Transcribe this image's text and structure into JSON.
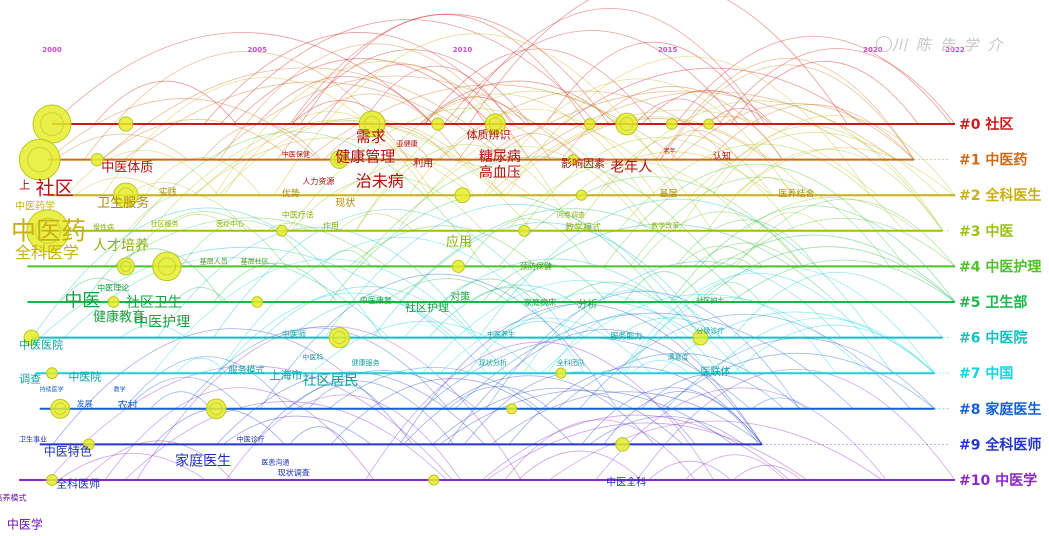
{
  "watermark": "川 陈 告 学 介",
  "chart_data": {
    "type": "timeline",
    "year_ticks": [
      2000,
      2005,
      2010,
      2015,
      2020,
      2022
    ],
    "xlim": [
      2000,
      2022
    ],
    "clusters": [
      {
        "id": "#0",
        "name": "社区",
        "color": "#d01818",
        "start": 2000.0,
        "end": 2022.0
      },
      {
        "id": "#1",
        "name": "中医药",
        "color": "#d06a12",
        "start": 1999.9,
        "end": 2021.0
      },
      {
        "id": "#2",
        "name": "全科医生",
        "color": "#c8b010",
        "start": 1999.9,
        "end": 2022.0
      },
      {
        "id": "#3",
        "name": "中医",
        "color": "#9cc012",
        "start": 1999.7,
        "end": 2021.7
      },
      {
        "id": "#4",
        "name": "中医护理",
        "color": "#4cc228",
        "start": 1999.4,
        "end": 2022.0
      },
      {
        "id": "#5",
        "name": "卫生部",
        "color": "#18b848",
        "start": 1999.4,
        "end": 2022.0
      },
      {
        "id": "#6",
        "name": "中医院",
        "color": "#12c0c0",
        "start": 1999.5,
        "end": 2021.7
      },
      {
        "id": "#7",
        "name": "中国",
        "color": "#10d4e0",
        "start": 1999.6,
        "end": 2021.5
      },
      {
        "id": "#8",
        "name": "家庭医生",
        "color": "#1460d0",
        "start": 1999.7,
        "end": 2021.5
      },
      {
        "id": "#9",
        "name": "全科医师",
        "color": "#2436c8",
        "start": 1999.7,
        "end": 2017.3
      },
      {
        "id": "#10",
        "name": "中医学",
        "color": "#8a28c8",
        "start": 1999.2,
        "end": 2022.0
      }
    ],
    "nodes": [
      {
        "c": 0,
        "year": 2000.0,
        "size": 5.0
      },
      {
        "c": 0,
        "year": 2001.8,
        "size": 1.5
      },
      {
        "c": 0,
        "year": 2007.8,
        "size": 3.2
      },
      {
        "c": 0,
        "year": 2009.4,
        "size": 1.2
      },
      {
        "c": 0,
        "year": 2010.8,
        "size": 2.4
      },
      {
        "c": 0,
        "year": 2013.1,
        "size": 1.0
      },
      {
        "c": 0,
        "year": 2014.0,
        "size": 2.6
      },
      {
        "c": 0,
        "year": 2015.1,
        "size": 1.0
      },
      {
        "c": 0,
        "year": 2016.0,
        "size": 0.9
      },
      {
        "c": 1,
        "year": 1999.7,
        "size": 5.4
      },
      {
        "c": 1,
        "year": 2001.1,
        "size": 1.2
      },
      {
        "c": 1,
        "year": 2007.0,
        "size": 2.0
      },
      {
        "c": 1,
        "year": 2012.7,
        "size": 0.9
      },
      {
        "c": 2,
        "year": 2001.8,
        "size": 3.0
      },
      {
        "c": 2,
        "year": 2010.0,
        "size": 1.6
      },
      {
        "c": 2,
        "year": 2012.9,
        "size": 0.9
      },
      {
        "c": 3,
        "year": 1999.9,
        "size": 5.6
      },
      {
        "c": 3,
        "year": 2005.6,
        "size": 1.0
      },
      {
        "c": 3,
        "year": 2011.5,
        "size": 1.0
      },
      {
        "c": 4,
        "year": 2001.8,
        "size": 1.9
      },
      {
        "c": 4,
        "year": 2002.8,
        "size": 3.6
      },
      {
        "c": 4,
        "year": 2009.9,
        "size": 1.2
      },
      {
        "c": 5,
        "year": 2001.5,
        "size": 1.0
      },
      {
        "c": 5,
        "year": 2005.0,
        "size": 1.0
      },
      {
        "c": 6,
        "year": 1999.5,
        "size": 1.6
      },
      {
        "c": 6,
        "year": 2007.0,
        "size": 2.4
      },
      {
        "c": 6,
        "year": 2015.8,
        "size": 1.6
      },
      {
        "c": 7,
        "year": 2000.0,
        "size": 1.0
      },
      {
        "c": 7,
        "year": 2012.4,
        "size": 0.9
      },
      {
        "c": 8,
        "year": 2000.2,
        "size": 2.2
      },
      {
        "c": 8,
        "year": 2004.0,
        "size": 2.3
      },
      {
        "c": 8,
        "year": 2011.2,
        "size": 0.9
      },
      {
        "c": 9,
        "year": 2000.9,
        "size": 1.0
      },
      {
        "c": 9,
        "year": 2013.9,
        "size": 1.4
      },
      {
        "c": 10,
        "year": 2000.0,
        "size": 1.0
      },
      {
        "c": 10,
        "year": 2009.3,
        "size": 0.9
      }
    ],
    "keywords": [
      {
        "text": "上",
        "year": 1999.2,
        "c": 1.7,
        "size": 11,
        "color": "#b01010"
      },
      {
        "text": "社区",
        "year": 1999.6,
        "c": 1.8,
        "size": 19,
        "color": "#b01010"
      },
      {
        "text": "中医药学",
        "year": 1999.1,
        "c": 2.3,
        "size": 10,
        "color": "#c8b010"
      },
      {
        "text": "中医药",
        "year": 1999.0,
        "c": 3.0,
        "size": 25,
        "color": "#c8b010"
      },
      {
        "text": "全科医学",
        "year": 1999.1,
        "c": 3.6,
        "size": 16,
        "color": "#c8b010"
      },
      {
        "text": "中医体质",
        "year": 2001.2,
        "c": 1.2,
        "size": 13,
        "color": "#b01010"
      },
      {
        "text": "卫生服务",
        "year": 2001.1,
        "c": 2.2,
        "size": 13,
        "color": "#b08a10"
      },
      {
        "text": "实践",
        "year": 2002.6,
        "c": 1.9,
        "size": 9,
        "color": "#b08a10"
      },
      {
        "text": "人才培养",
        "year": 2001.0,
        "c": 3.4,
        "size": 14,
        "color": "#8ab010"
      },
      {
        "text": "社区服务",
        "year": 2002.4,
        "c": 2.8,
        "size": 7,
        "color": "#8ab010"
      },
      {
        "text": "慢性病",
        "year": 2001.0,
        "c": 2.9,
        "size": 7,
        "color": "#8ab010"
      },
      {
        "text": "医疗中心",
        "year": 2004.0,
        "c": 2.8,
        "size": 7,
        "color": "#8ab010"
      },
      {
        "text": "中医保健",
        "year": 2005.6,
        "c": 0.85,
        "size": 7,
        "color": "#b01010"
      },
      {
        "text": "亚健康",
        "year": 2008.4,
        "c": 0.55,
        "size": 7,
        "color": "#b01010"
      },
      {
        "text": "需求",
        "year": 2007.4,
        "c": 0.35,
        "size": 15,
        "color": "#b01010"
      },
      {
        "text": "健康管理",
        "year": 2006.9,
        "c": 0.9,
        "size": 15,
        "color": "#b01010"
      },
      {
        "text": "利用",
        "year": 2008.8,
        "c": 1.1,
        "size": 10,
        "color": "#b01010"
      },
      {
        "text": "体质辨识",
        "year": 2010.1,
        "c": 0.3,
        "size": 11,
        "color": "#b01010"
      },
      {
        "text": "糖尿病",
        "year": 2010.4,
        "c": 0.9,
        "size": 14,
        "color": "#b01010"
      },
      {
        "text": "高血压",
        "year": 2010.4,
        "c": 1.35,
        "size": 14,
        "color": "#b01010"
      },
      {
        "text": "影响因素",
        "year": 2012.4,
        "c": 1.1,
        "size": 11,
        "color": "#b01010"
      },
      {
        "text": "老年人",
        "year": 2013.6,
        "c": 1.2,
        "size": 14,
        "color": "#b01010"
      },
      {
        "text": "老年",
        "year": 2014.9,
        "c": 0.75,
        "size": 6,
        "color": "#b01010"
      },
      {
        "text": "认知",
        "year": 2016.1,
        "c": 0.9,
        "size": 9,
        "color": "#b01010"
      },
      {
        "text": "人力资源",
        "year": 2006.1,
        "c": 1.6,
        "size": 8,
        "color": "#b01010"
      },
      {
        "text": "治未病",
        "year": 2007.4,
        "c": 1.6,
        "size": 16,
        "color": "#b01010"
      },
      {
        "text": "优势",
        "year": 2005.6,
        "c": 1.95,
        "size": 9,
        "color": "#b08a10"
      },
      {
        "text": "现状",
        "year": 2006.9,
        "c": 2.2,
        "size": 10,
        "color": "#b08a10"
      },
      {
        "text": "基层",
        "year": 2014.8,
        "c": 1.95,
        "size": 9,
        "color": "#b08a10"
      },
      {
        "text": "医养结合",
        "year": 2017.7,
        "c": 1.95,
        "size": 9,
        "color": "#b08a10"
      },
      {
        "text": "中医疗法",
        "year": 2005.6,
        "c": 2.55,
        "size": 8,
        "color": "#8ab010"
      },
      {
        "text": "作用",
        "year": 2006.6,
        "c": 2.85,
        "size": 8,
        "color": "#8ab010"
      },
      {
        "text": "问卷调查",
        "year": 2012.3,
        "c": 2.55,
        "size": 7,
        "color": "#8ab010"
      },
      {
        "text": "教学模式",
        "year": 2012.5,
        "c": 2.9,
        "size": 9,
        "color": "#8ab010"
      },
      {
        "text": "教学改革",
        "year": 2014.6,
        "c": 2.85,
        "size": 7,
        "color": "#8ab010"
      },
      {
        "text": "应用",
        "year": 2009.6,
        "c": 3.3,
        "size": 13,
        "color": "#8ab010"
      },
      {
        "text": "预防保健",
        "year": 2011.4,
        "c": 4.0,
        "size": 8,
        "color": "#4aa020"
      },
      {
        "text": "基层人员",
        "year": 2003.6,
        "c": 3.85,
        "size": 7,
        "color": "#4aa020"
      },
      {
        "text": "基层社区",
        "year": 2004.6,
        "c": 3.85,
        "size": 7,
        "color": "#4aa020"
      },
      {
        "text": "中医理论",
        "year": 2001.1,
        "c": 4.6,
        "size": 8,
        "color": "#18a040"
      },
      {
        "text": "中医",
        "year": 2000.3,
        "c": 4.95,
        "size": 18,
        "color": "#18a040"
      },
      {
        "text": "社区卫生",
        "year": 2001.8,
        "c": 5.0,
        "size": 14,
        "color": "#18a040"
      },
      {
        "text": "健康教育",
        "year": 2001.0,
        "c": 5.4,
        "size": 13,
        "color": "#18a040"
      },
      {
        "text": "中医护理",
        "year": 2002.0,
        "c": 5.55,
        "size": 14,
        "color": "#18a040"
      },
      {
        "text": "中医康复",
        "year": 2007.5,
        "c": 4.95,
        "size": 8,
        "color": "#18a040"
      },
      {
        "text": "对策",
        "year": 2009.7,
        "c": 4.85,
        "size": 10,
        "color": "#18a040"
      },
      {
        "text": "社区护理",
        "year": 2008.6,
        "c": 5.15,
        "size": 11,
        "color": "#18a040"
      },
      {
        "text": "家庭病床",
        "year": 2011.5,
        "c": 5.0,
        "size": 8,
        "color": "#18a040"
      },
      {
        "text": "分析",
        "year": 2012.8,
        "c": 5.05,
        "size": 10,
        "color": "#18a040"
      },
      {
        "text": "社区护士",
        "year": 2015.7,
        "c": 4.95,
        "size": 7,
        "color": "#18a040"
      },
      {
        "text": "中医医院",
        "year": 1999.2,
        "c": 6.2,
        "size": 11,
        "color": "#10a0a0"
      },
      {
        "text": "中医师",
        "year": 2005.6,
        "c": 5.9,
        "size": 8,
        "color": "#10a0a0"
      },
      {
        "text": "中医养生",
        "year": 2010.6,
        "c": 5.9,
        "size": 7,
        "color": "#10a0a0"
      },
      {
        "text": "服务能力",
        "year": 2013.6,
        "c": 5.95,
        "size": 8,
        "color": "#10a0a0"
      },
      {
        "text": "分级诊疗",
        "year": 2015.7,
        "c": 5.8,
        "size": 7,
        "color": "#10a0a0"
      },
      {
        "text": "满意度",
        "year": 2015.0,
        "c": 6.55,
        "size": 7,
        "color": "#10a0a0"
      },
      {
        "text": "医联体",
        "year": 2015.8,
        "c": 6.95,
        "size": 10,
        "color": "#10a0a0"
      },
      {
        "text": "中医科",
        "year": 2006.1,
        "c": 6.55,
        "size": 7,
        "color": "#10a0a0"
      },
      {
        "text": "健康服务",
        "year": 2007.3,
        "c": 6.7,
        "size": 7,
        "color": "#10a0a0"
      },
      {
        "text": "现状分析",
        "year": 2010.4,
        "c": 6.7,
        "size": 7,
        "color": "#10a0a0"
      },
      {
        "text": "全科团队",
        "year": 2012.3,
        "c": 6.7,
        "size": 7,
        "color": "#10a0a0"
      },
      {
        "text": "服务模式",
        "year": 2004.3,
        "c": 6.9,
        "size": 9,
        "color": "#10a0a0"
      },
      {
        "text": "上海市",
        "year": 2005.3,
        "c": 7.05,
        "size": 11,
        "color": "#10a0a0"
      },
      {
        "text": "社区居民",
        "year": 2006.1,
        "c": 7.2,
        "size": 14,
        "color": "#10a0a0"
      },
      {
        "text": "调查",
        "year": 1999.2,
        "c": 7.15,
        "size": 11,
        "color": "#10a0a0"
      },
      {
        "text": "中医院",
        "year": 2000.4,
        "c": 7.1,
        "size": 11,
        "color": "#10a0a0"
      },
      {
        "text": "持续医学",
        "year": 1999.7,
        "c": 7.45,
        "size": 6,
        "color": "#1460d0"
      },
      {
        "text": "教学",
        "year": 2001.5,
        "c": 7.45,
        "size": 6,
        "color": "#1460d0"
      },
      {
        "text": "发展",
        "year": 2000.6,
        "c": 7.85,
        "size": 8,
        "color": "#1460d0"
      },
      {
        "text": "农村",
        "year": 2001.6,
        "c": 7.9,
        "size": 10,
        "color": "#1460d0"
      },
      {
        "text": "卫生事业",
        "year": 1999.2,
        "c": 8.85,
        "size": 7,
        "color": "#1f30b8"
      },
      {
        "text": "中医特色",
        "year": 1999.8,
        "c": 9.2,
        "size": 12,
        "color": "#1f30b8"
      },
      {
        "text": "中医诊疗",
        "year": 2004.5,
        "c": 8.85,
        "size": 7,
        "color": "#1f30b8"
      },
      {
        "text": "家庭医生",
        "year": 2003.0,
        "c": 9.45,
        "size": 14,
        "color": "#1f30b8"
      },
      {
        "text": "医患沟通",
        "year": 2005.1,
        "c": 9.5,
        "size": 7,
        "color": "#1f30b8"
      },
      {
        "text": "现状调查",
        "year": 2005.5,
        "c": 9.8,
        "size": 8,
        "color": "#1f30b8"
      },
      {
        "text": "全科医师",
        "year": 2000.1,
        "c": 10.1,
        "size": 11,
        "color": "#1f30b8"
      },
      {
        "text": "中医全科",
        "year": 2013.5,
        "c": 10.05,
        "size": 10,
        "color": "#1f30b8"
      },
      {
        "text": "培养模式",
        "year": 1998.6,
        "c": 10.5,
        "size": 8,
        "color": "#6a10b0"
      },
      {
        "text": "中医学",
        "year": 1998.9,
        "c": 11.25,
        "size": 12,
        "color": "#6a10b0"
      }
    ]
  }
}
